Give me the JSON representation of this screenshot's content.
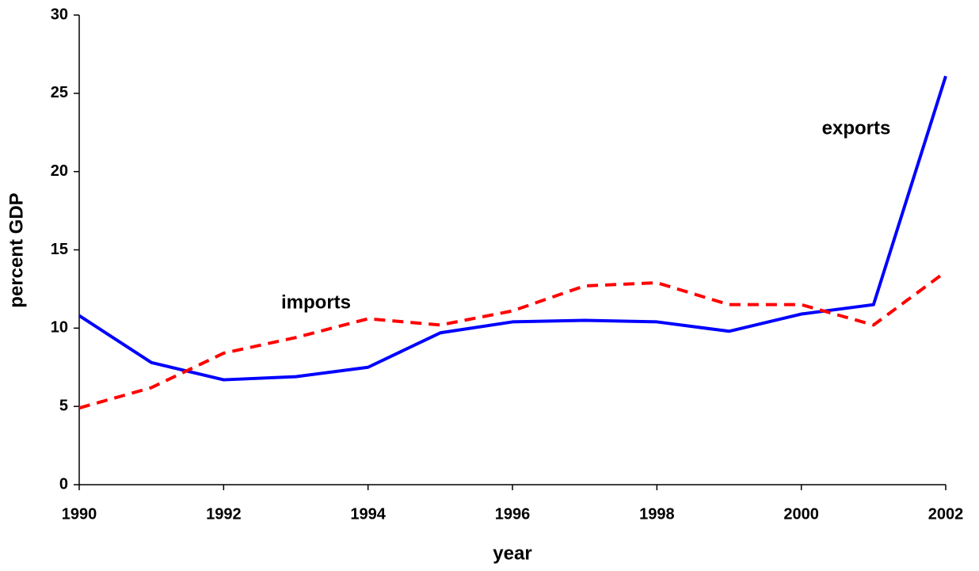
{
  "chart_data": {
    "type": "line",
    "x": [
      1990,
      1991,
      1992,
      1993,
      1994,
      1995,
      1996,
      1997,
      1998,
      1999,
      2000,
      2001,
      2002
    ],
    "series": [
      {
        "name": "exports",
        "color": "#0000ff",
        "dash": false,
        "values": [
          10.8,
          7.8,
          6.7,
          6.9,
          7.5,
          9.7,
          10.4,
          10.5,
          10.4,
          9.8,
          10.9,
          11.5,
          26.1
        ]
      },
      {
        "name": "imports",
        "color": "#ff0000",
        "dash": true,
        "values": [
          4.9,
          6.2,
          8.4,
          9.4,
          10.6,
          10.2,
          11.1,
          12.7,
          12.9,
          11.5,
          11.5,
          10.2,
          13.6
        ]
      }
    ],
    "xlabel": "year",
    "ylabel": "percent GDP",
    "xlim": [
      1990,
      2002
    ],
    "xticks": [
      1990,
      1992,
      1994,
      1996,
      1998,
      2000,
      2002
    ],
    "ylim": [
      0,
      30
    ],
    "yticks": [
      0,
      5,
      10,
      15,
      20,
      25,
      30
    ],
    "grid": false
  }
}
